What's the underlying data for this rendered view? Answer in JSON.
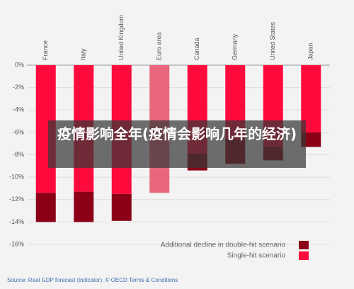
{
  "chart_data": {
    "type": "stacked-bar",
    "categories": [
      "France",
      "Italy",
      "United Kingdom",
      "Euro area",
      "Canada",
      "Germany",
      "United States",
      "Japan"
    ],
    "series": [
      {
        "name": "Single-hit scenario",
        "color": "#ff0a3c",
        "colors": [
          "#ff0a3c",
          "#ff0a3c",
          "#ff0a3c",
          "#e8677c",
          "#ff0a3c",
          "#ff0a3c",
          "#ff0a3c",
          "#ff0a3c"
        ],
        "values": [
          -11.4,
          -11.3,
          -11.5,
          -11.4,
          -7.9,
          -6.6,
          -7.3,
          -6.0
        ]
      },
      {
        "name": "Additional decline in double-hit scenario",
        "color": "#8b0016",
        "values": [
          -2.6,
          -2.7,
          -2.4,
          null,
          -1.5,
          -2.2,
          -1.2,
          -1.3
        ]
      }
    ],
    "ylim": [
      0,
      -16
    ],
    "yticks": [
      {
        "value": 0,
        "label": "0%"
      },
      {
        "value": -2,
        "label": "-2%"
      },
      {
        "value": -4,
        "label": "-4%"
      },
      {
        "value": -6,
        "label": "-6%"
      },
      {
        "value": -8,
        "label": "-8%"
      },
      {
        "value": -10,
        "label": "-10%"
      },
      {
        "value": -12,
        "label": "-12%"
      },
      {
        "value": -14,
        "label": "-14%"
      },
      {
        "value": -16,
        "label": "-16%"
      }
    ],
    "grid": true,
    "legend": "lower-right",
    "source": "Source: Real GDP forecast (indicator). © OECD Terms & Conditions"
  },
  "overlay_caption": "疫情影响全年(疫情会影响几年的经济)"
}
